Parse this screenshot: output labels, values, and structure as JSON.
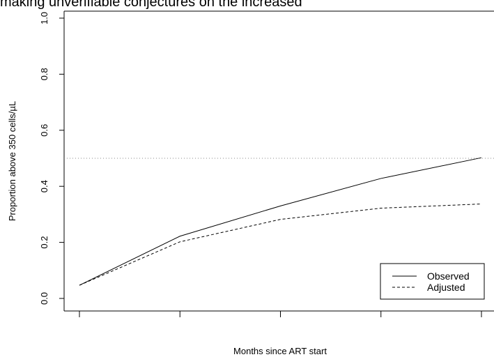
{
  "page": {
    "header_text": "making unverifiable conjectures on the increased"
  },
  "chart_data": {
    "type": "line",
    "title": "",
    "xlabel": "Months since ART start",
    "ylabel": "Proportion above 350 cells/µL",
    "x": [
      0,
      1,
      2,
      3,
      4
    ],
    "xlim": [
      0,
      4
    ],
    "ylim": [
      0,
      1
    ],
    "yticks": [
      {
        "value": 0.0,
        "label": "0.0"
      },
      {
        "value": 0.2,
        "label": "0.2"
      },
      {
        "value": 0.4,
        "label": "0.4"
      },
      {
        "value": 0.6,
        "label": "0.6"
      },
      {
        "value": 0.8,
        "label": "0.8"
      },
      {
        "value": 1.0,
        "label": "1.0"
      }
    ],
    "reference_line": {
      "y": 0.5,
      "style": "dotted"
    },
    "series": [
      {
        "name": "Observed",
        "style": "solid",
        "values": [
          0.047,
          0.222,
          0.33,
          0.428,
          0.502
        ]
      },
      {
        "name": "Adjusted",
        "style": "dashed",
        "values": [
          0.047,
          0.202,
          0.282,
          0.322,
          0.337
        ]
      }
    ],
    "legend_position": "bottom-right",
    "grid": false,
    "colors": {
      "line": "#000000",
      "reference": "#888888"
    }
  }
}
